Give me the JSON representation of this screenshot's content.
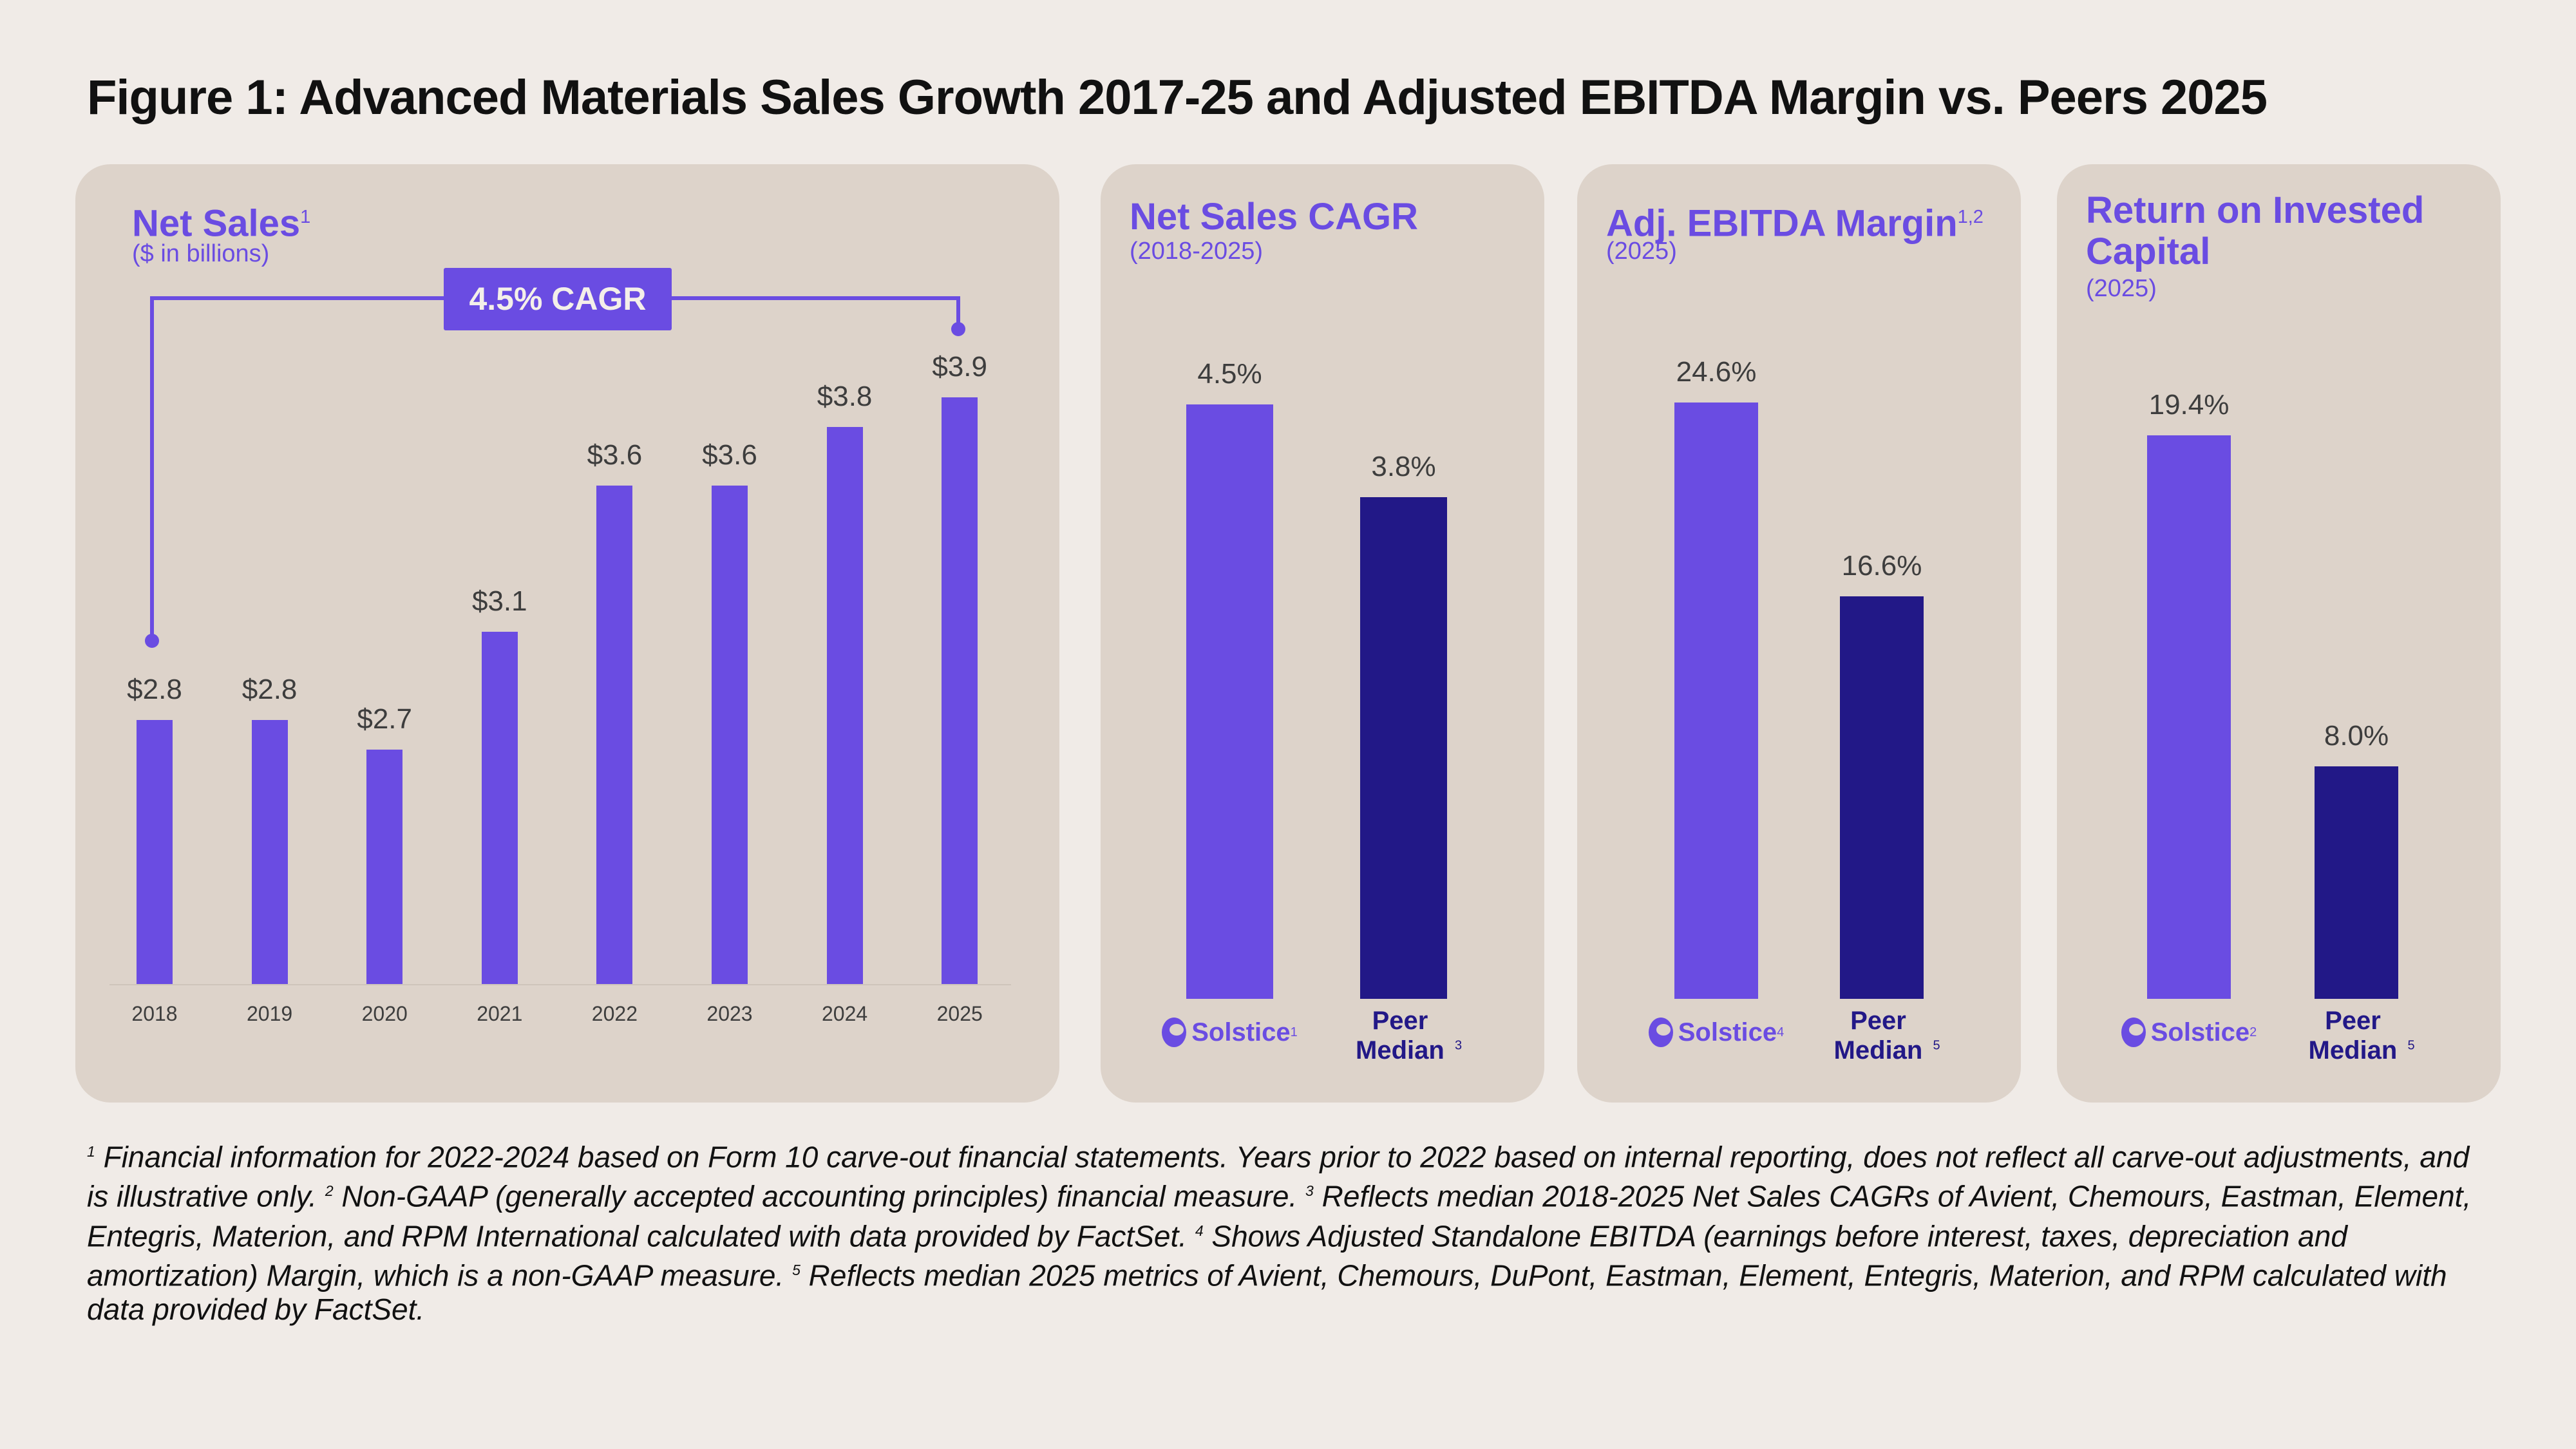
{
  "title": "Figure 1: Advanced Materials Sales Growth 2017-25 and Adjusted EBITDA Margin vs. Peers 2025",
  "colors": {
    "accent": "#6a4ce2",
    "peer": "#221887",
    "panel": "#ddd3ca",
    "background": "#f0ebe7"
  },
  "chart_data": [
    {
      "type": "bar",
      "title": "Net Sales",
      "title_sup": "1",
      "subtitle": "($ in billions)",
      "annotation": "4.5% CAGR",
      "categories": [
        "2018",
        "2019",
        "2020",
        "2021",
        "2022",
        "2023",
        "2024",
        "2025"
      ],
      "values": [
        2.8,
        2.8,
        2.7,
        3.1,
        3.6,
        3.6,
        3.8,
        3.9
      ],
      "labels": [
        "$2.8",
        "$2.8",
        "$2.7",
        "$3.1",
        "$3.6",
        "$3.6",
        "$3.8",
        "$3.9"
      ],
      "ylim": [
        1.9,
        4.0
      ]
    },
    {
      "type": "bar",
      "title": "Net Sales CAGR",
      "subtitle": "(2018-2025)",
      "categories": [
        {
          "name": "Solstice",
          "sup": "1"
        },
        {
          "name": "Peer Median",
          "sup": "3"
        }
      ],
      "values": [
        4.5,
        3.8
      ],
      "labels": [
        "4.5%",
        "3.8%"
      ],
      "ylim": [
        0,
        4.5
      ]
    },
    {
      "type": "bar",
      "title": "Adj. EBITDA Margin",
      "title_sup": "1,2",
      "subtitle": "(2025)",
      "categories": [
        {
          "name": "Solstice",
          "sup": "4"
        },
        {
          "name": "Peer Median",
          "sup": "5"
        }
      ],
      "values": [
        24.6,
        16.6
      ],
      "labels": [
        "24.6%",
        "16.6%"
      ],
      "ylim": [
        0,
        24.6
      ]
    },
    {
      "type": "bar",
      "title": "Return on Invested Capital",
      "subtitle": "(2025)",
      "categories": [
        {
          "name": "Solstice",
          "sup": "2"
        },
        {
          "name": "Peer Median",
          "sup": "5"
        }
      ],
      "values": [
        19.4,
        8.0
      ],
      "labels": [
        "19.4%",
        "8.0%"
      ],
      "ylim": [
        0,
        19.4
      ]
    }
  ],
  "footnote": [
    {
      "sup": "1",
      "text": " Financial information for 2022-2024 based on Form 10 carve-out financial statements. Years prior to 2022 based on internal reporting, does not reflect all carve-out adjustments, and is illustrative only. "
    },
    {
      "sup": "2",
      "text": " Non-GAAP (generally accepted accounting principles) financial measure. "
    },
    {
      "sup": "3",
      "text": " Reflects median 2018-2025 Net Sales CAGRs of Avient, Chemours, Eastman, Element, Entegris, Materion, and RPM International calculated with data provided by FactSet. "
    },
    {
      "sup": "4",
      "text": " Shows Adjusted Standalone EBITDA (earnings before interest, taxes, depreciation and amortization) Margin, which is a non-GAAP measure. "
    },
    {
      "sup": "5",
      "text": " Reflects median 2025 metrics of Avient, Chemours, DuPont, Eastman, Element, Entegris, Materion, and RPM calculated with data provided by FactSet."
    }
  ]
}
